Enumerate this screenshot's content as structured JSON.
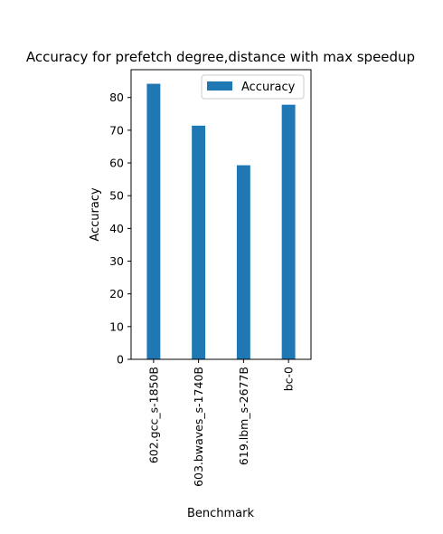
{
  "chart_data": {
    "type": "bar",
    "title": "Accuracy for prefetch degree,distance with max speedup",
    "xlabel": "Benchmark",
    "ylabel": "Accuracy",
    "categories": [
      "602.gcc_s-1850B",
      "603.bwaves_s-1740B",
      "619.lbm_s-2677B",
      "bc-0"
    ],
    "series": [
      {
        "name": "Accuracy",
        "values": [
          84.2,
          71.4,
          59.3,
          77.8
        ],
        "color": "#1f77b4"
      }
    ],
    "ylim": [
      0,
      88.5
    ],
    "yticks": [
      0,
      10,
      20,
      30,
      40,
      50,
      60,
      70,
      80
    ],
    "grid": false,
    "legend": {
      "position": "top-right",
      "entries": [
        "Accuracy"
      ]
    }
  }
}
